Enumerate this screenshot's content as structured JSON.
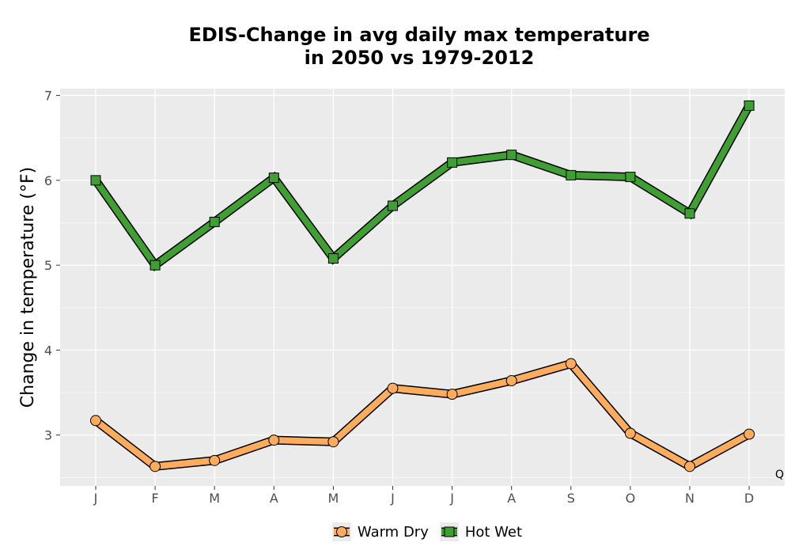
{
  "chart_data": {
    "type": "line",
    "title_lines": [
      "EDIS-Change in avg daily max temperature",
      "in 2050 vs 1979-2012"
    ],
    "xlabel": "",
    "ylabel": "Change in temperature (°F)",
    "categories": [
      "J",
      "F",
      "M",
      "A",
      "M",
      "J",
      "J",
      "A",
      "S",
      "O",
      "N",
      "D"
    ],
    "ylim": [
      2.4,
      7.08
    ],
    "yticks": [
      3,
      4,
      5,
      6,
      7
    ],
    "grid": true,
    "legend_position": "bottom",
    "annotation": "Q",
    "series": [
      {
        "name": "Warm Dry",
        "marker": "circle",
        "color": "#fdac5e",
        "values": [
          3.17,
          2.63,
          2.7,
          2.94,
          2.92,
          3.55,
          3.48,
          3.64,
          3.84,
          3.02,
          2.63,
          3.01
        ]
      },
      {
        "name": "Hot Wet",
        "marker": "square",
        "color": "#3f9f32",
        "values": [
          6.0,
          5.0,
          5.51,
          6.03,
          5.08,
          5.7,
          6.21,
          6.3,
          6.06,
          6.04,
          5.61,
          6.88
        ]
      }
    ]
  }
}
